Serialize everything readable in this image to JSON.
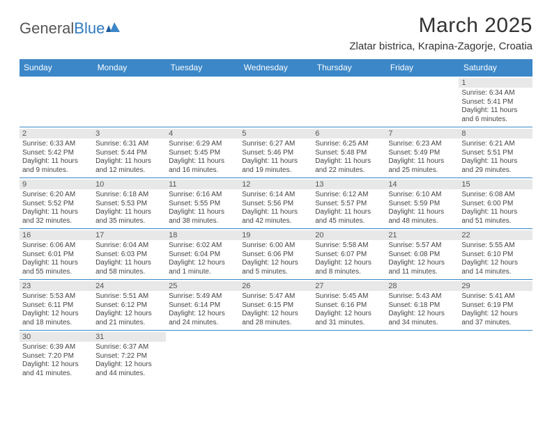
{
  "logo": {
    "text_a": "General",
    "text_b": "Blue"
  },
  "title": "March 2025",
  "location": "Zlatar bistrica, Krapina-Zagorje, Croatia",
  "header_bg": "#3b87c8",
  "header_fg": "#ffffff",
  "daynum_bg": "#e8e8e8",
  "border_color": "#3b87c8",
  "weekdays": [
    "Sunday",
    "Monday",
    "Tuesday",
    "Wednesday",
    "Thursday",
    "Friday",
    "Saturday"
  ],
  "weeks": [
    [
      null,
      null,
      null,
      null,
      null,
      null,
      {
        "n": "1",
        "sr": "Sunrise: 6:34 AM",
        "ss": "Sunset: 5:41 PM",
        "d1": "Daylight: 11 hours",
        "d2": "and 6 minutes."
      }
    ],
    [
      {
        "n": "2",
        "sr": "Sunrise: 6:33 AM",
        "ss": "Sunset: 5:42 PM",
        "d1": "Daylight: 11 hours",
        "d2": "and 9 minutes."
      },
      {
        "n": "3",
        "sr": "Sunrise: 6:31 AM",
        "ss": "Sunset: 5:44 PM",
        "d1": "Daylight: 11 hours",
        "d2": "and 12 minutes."
      },
      {
        "n": "4",
        "sr": "Sunrise: 6:29 AM",
        "ss": "Sunset: 5:45 PM",
        "d1": "Daylight: 11 hours",
        "d2": "and 16 minutes."
      },
      {
        "n": "5",
        "sr": "Sunrise: 6:27 AM",
        "ss": "Sunset: 5:46 PM",
        "d1": "Daylight: 11 hours",
        "d2": "and 19 minutes."
      },
      {
        "n": "6",
        "sr": "Sunrise: 6:25 AM",
        "ss": "Sunset: 5:48 PM",
        "d1": "Daylight: 11 hours",
        "d2": "and 22 minutes."
      },
      {
        "n": "7",
        "sr": "Sunrise: 6:23 AM",
        "ss": "Sunset: 5:49 PM",
        "d1": "Daylight: 11 hours",
        "d2": "and 25 minutes."
      },
      {
        "n": "8",
        "sr": "Sunrise: 6:21 AM",
        "ss": "Sunset: 5:51 PM",
        "d1": "Daylight: 11 hours",
        "d2": "and 29 minutes."
      }
    ],
    [
      {
        "n": "9",
        "sr": "Sunrise: 6:20 AM",
        "ss": "Sunset: 5:52 PM",
        "d1": "Daylight: 11 hours",
        "d2": "and 32 minutes."
      },
      {
        "n": "10",
        "sr": "Sunrise: 6:18 AM",
        "ss": "Sunset: 5:53 PM",
        "d1": "Daylight: 11 hours",
        "d2": "and 35 minutes."
      },
      {
        "n": "11",
        "sr": "Sunrise: 6:16 AM",
        "ss": "Sunset: 5:55 PM",
        "d1": "Daylight: 11 hours",
        "d2": "and 38 minutes."
      },
      {
        "n": "12",
        "sr": "Sunrise: 6:14 AM",
        "ss": "Sunset: 5:56 PM",
        "d1": "Daylight: 11 hours",
        "d2": "and 42 minutes."
      },
      {
        "n": "13",
        "sr": "Sunrise: 6:12 AM",
        "ss": "Sunset: 5:57 PM",
        "d1": "Daylight: 11 hours",
        "d2": "and 45 minutes."
      },
      {
        "n": "14",
        "sr": "Sunrise: 6:10 AM",
        "ss": "Sunset: 5:59 PM",
        "d1": "Daylight: 11 hours",
        "d2": "and 48 minutes."
      },
      {
        "n": "15",
        "sr": "Sunrise: 6:08 AM",
        "ss": "Sunset: 6:00 PM",
        "d1": "Daylight: 11 hours",
        "d2": "and 51 minutes."
      }
    ],
    [
      {
        "n": "16",
        "sr": "Sunrise: 6:06 AM",
        "ss": "Sunset: 6:01 PM",
        "d1": "Daylight: 11 hours",
        "d2": "and 55 minutes."
      },
      {
        "n": "17",
        "sr": "Sunrise: 6:04 AM",
        "ss": "Sunset: 6:03 PM",
        "d1": "Daylight: 11 hours",
        "d2": "and 58 minutes."
      },
      {
        "n": "18",
        "sr": "Sunrise: 6:02 AM",
        "ss": "Sunset: 6:04 PM",
        "d1": "Daylight: 12 hours",
        "d2": "and 1 minute."
      },
      {
        "n": "19",
        "sr": "Sunrise: 6:00 AM",
        "ss": "Sunset: 6:06 PM",
        "d1": "Daylight: 12 hours",
        "d2": "and 5 minutes."
      },
      {
        "n": "20",
        "sr": "Sunrise: 5:58 AM",
        "ss": "Sunset: 6:07 PM",
        "d1": "Daylight: 12 hours",
        "d2": "and 8 minutes."
      },
      {
        "n": "21",
        "sr": "Sunrise: 5:57 AM",
        "ss": "Sunset: 6:08 PM",
        "d1": "Daylight: 12 hours",
        "d2": "and 11 minutes."
      },
      {
        "n": "22",
        "sr": "Sunrise: 5:55 AM",
        "ss": "Sunset: 6:10 PM",
        "d1": "Daylight: 12 hours",
        "d2": "and 14 minutes."
      }
    ],
    [
      {
        "n": "23",
        "sr": "Sunrise: 5:53 AM",
        "ss": "Sunset: 6:11 PM",
        "d1": "Daylight: 12 hours",
        "d2": "and 18 minutes."
      },
      {
        "n": "24",
        "sr": "Sunrise: 5:51 AM",
        "ss": "Sunset: 6:12 PM",
        "d1": "Daylight: 12 hours",
        "d2": "and 21 minutes."
      },
      {
        "n": "25",
        "sr": "Sunrise: 5:49 AM",
        "ss": "Sunset: 6:14 PM",
        "d1": "Daylight: 12 hours",
        "d2": "and 24 minutes."
      },
      {
        "n": "26",
        "sr": "Sunrise: 5:47 AM",
        "ss": "Sunset: 6:15 PM",
        "d1": "Daylight: 12 hours",
        "d2": "and 28 minutes."
      },
      {
        "n": "27",
        "sr": "Sunrise: 5:45 AM",
        "ss": "Sunset: 6:16 PM",
        "d1": "Daylight: 12 hours",
        "d2": "and 31 minutes."
      },
      {
        "n": "28",
        "sr": "Sunrise: 5:43 AM",
        "ss": "Sunset: 6:18 PM",
        "d1": "Daylight: 12 hours",
        "d2": "and 34 minutes."
      },
      {
        "n": "29",
        "sr": "Sunrise: 5:41 AM",
        "ss": "Sunset: 6:19 PM",
        "d1": "Daylight: 12 hours",
        "d2": "and 37 minutes."
      }
    ],
    [
      {
        "n": "30",
        "sr": "Sunrise: 6:39 AM",
        "ss": "Sunset: 7:20 PM",
        "d1": "Daylight: 12 hours",
        "d2": "and 41 minutes."
      },
      {
        "n": "31",
        "sr": "Sunrise: 6:37 AM",
        "ss": "Sunset: 7:22 PM",
        "d1": "Daylight: 12 hours",
        "d2": "and 44 minutes."
      },
      null,
      null,
      null,
      null,
      null
    ]
  ]
}
